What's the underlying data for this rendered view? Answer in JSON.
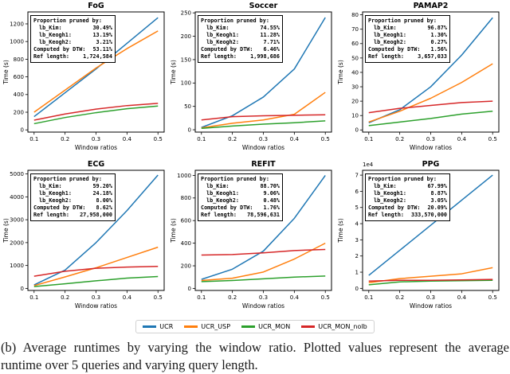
{
  "figure": {
    "stats_header": "Proportion pruned by:"
  },
  "legend": {
    "entries": [
      {
        "label": "UCR",
        "color": "#1f77b4"
      },
      {
        "label": "UCR_USP",
        "color": "#ff7f0e"
      },
      {
        "label": "UCR_MON",
        "color": "#2ca02c"
      },
      {
        "label": "UCR_MON_nolb",
        "color": "#d62728"
      }
    ]
  },
  "chart_data": [
    {
      "type": "line",
      "title": "FoG",
      "xlabel": "Window ratios",
      "ylabel": "Time (s)",
      "x": [
        0.1,
        0.2,
        0.3,
        0.4,
        0.5
      ],
      "xticks": [
        "0.1",
        "0.2",
        "0.3",
        "0.4",
        "0.5"
      ],
      "yticks": [
        0,
        200,
        400,
        600,
        800,
        1000,
        1200
      ],
      "xlim": [
        0.08,
        0.52
      ],
      "ylim": [
        -25,
        1335
      ],
      "offset_label": "",
      "stats_rows": [
        {
          "label": "lb_Kim:",
          "value": "30.49%"
        },
        {
          "label": "lb_Keogh1:",
          "value": "13.19%"
        },
        {
          "label": "lb_Keogh2:",
          "value": "3.21%"
        },
        {
          "label": "Computed by DTW:",
          "value": "53.11%"
        },
        {
          "label": "Ref length:",
          "value": "1,724,584"
        }
      ],
      "series": [
        {
          "name": "UCR",
          "values": [
            150,
            420,
            690,
            980,
            1270
          ]
        },
        {
          "name": "UCR_USP",
          "values": [
            200,
            450,
            700,
            920,
            1120
          ]
        },
        {
          "name": "UCR_MON",
          "values": [
            70,
            140,
            195,
            240,
            270
          ]
        },
        {
          "name": "UCR_MON_nolb",
          "values": [
            110,
            180,
            235,
            275,
            300
          ]
        }
      ]
    },
    {
      "type": "line",
      "title": "Soccer",
      "xlabel": "Window ratios",
      "ylabel": "Time (s)",
      "x": [
        0.1,
        0.2,
        0.3,
        0.4,
        0.5
      ],
      "xticks": [
        "0.1",
        "0.2",
        "0.3",
        "0.4",
        "0.5"
      ],
      "yticks": [
        0,
        50,
        100,
        150,
        200,
        250
      ],
      "xlim": [
        0.08,
        0.52
      ],
      "ylim": [
        -5,
        252
      ],
      "offset_label": "",
      "stats_rows": [
        {
          "label": "lb_Kim:",
          "value": "74.55%"
        },
        {
          "label": "lb_Keogh1:",
          "value": "11.28%"
        },
        {
          "label": "lb_Keogh2:",
          "value": "7.71%"
        },
        {
          "label": "Computed by DTW:",
          "value": "6.46%"
        },
        {
          "label": "Ref length:",
          "value": "1,998,686"
        }
      ],
      "series": [
        {
          "name": "UCR",
          "values": [
            5,
            30,
            70,
            130,
            240
          ]
        },
        {
          "name": "UCR_USP",
          "values": [
            4,
            14,
            21,
            33,
            80
          ]
        },
        {
          "name": "UCR_MON",
          "values": [
            3,
            8,
            12,
            15,
            19
          ]
        },
        {
          "name": "UCR_MON_nolb",
          "values": [
            21,
            28,
            30,
            31,
            32
          ]
        }
      ]
    },
    {
      "type": "line",
      "title": "PAMAP2",
      "xlabel": "Window ratios",
      "ylabel": "Time (s)",
      "x": [
        0.1,
        0.2,
        0.3,
        0.4,
        0.5
      ],
      "xticks": [
        "0.1",
        "0.2",
        "0.3",
        "0.4",
        "0.5"
      ],
      "yticks": [
        0,
        10,
        20,
        30,
        40,
        50,
        60,
        70,
        80
      ],
      "xlim": [
        0.08,
        0.52
      ],
      "ylim": [
        -1.5,
        82
      ],
      "offset_label": "",
      "stats_rows": [
        {
          "label": "lb_Kim:",
          "value": "96.87%"
        },
        {
          "label": "lb_Keogh1:",
          "value": "1.30%"
        },
        {
          "label": "lb_Keogh2:",
          "value": "0.27%"
        },
        {
          "label": "Computed by DTW:",
          "value": "1.56%"
        },
        {
          "label": "Ref length:",
          "value": "3,657,033"
        }
      ],
      "series": [
        {
          "name": "UCR",
          "values": [
            5,
            14,
            30,
            52,
            78
          ]
        },
        {
          "name": "UCR_USP",
          "values": [
            5.5,
            13,
            22,
            33,
            46
          ]
        },
        {
          "name": "UCR_MON",
          "values": [
            3,
            5.5,
            8,
            11,
            13
          ]
        },
        {
          "name": "UCR_MON_nolb",
          "values": [
            12,
            15,
            17,
            19,
            20
          ]
        }
      ]
    },
    {
      "type": "line",
      "title": "ECG",
      "xlabel": "Window ratios",
      "ylabel": "Time (s)",
      "x": [
        0.1,
        0.2,
        0.3,
        0.4,
        0.5
      ],
      "xticks": [
        "0.1",
        "0.2",
        "0.3",
        "0.4",
        "0.5"
      ],
      "yticks": [
        0,
        1000,
        2000,
        3000,
        4000,
        5000
      ],
      "xlim": [
        0.08,
        0.52
      ],
      "ylim": [
        -90,
        5160
      ],
      "offset_label": "",
      "stats_rows": [
        {
          "label": "lb_Kim:",
          "value": "59.20%"
        },
        {
          "label": "lb_Keogh1:",
          "value": "24.18%"
        },
        {
          "label": "lb_Keogh2:",
          "value": "8.00%"
        },
        {
          "label": "Computed by DTW:",
          "value": "8.62%"
        },
        {
          "label": "Ref length:",
          "value": "27,958,000"
        }
      ],
      "series": [
        {
          "name": "UCR",
          "values": [
            150,
            800,
            2000,
            3400,
            4950
          ]
        },
        {
          "name": "UCR_USP",
          "values": [
            120,
            500,
            900,
            1350,
            1800
          ]
        },
        {
          "name": "UCR_MON",
          "values": [
            80,
            200,
            330,
            450,
            520
          ]
        },
        {
          "name": "UCR_MON_nolb",
          "values": [
            530,
            750,
            880,
            930,
            960
          ]
        }
      ]
    },
    {
      "type": "line",
      "title": "REFIT",
      "xlabel": "Window ratios",
      "ylabel": "Time (s)",
      "x": [
        0.1,
        0.2,
        0.3,
        0.4,
        0.5
      ],
      "xticks": [
        "0.1",
        "0.2",
        "0.3",
        "0.4",
        "0.5"
      ],
      "yticks": [
        0,
        200,
        400,
        600,
        800,
        1000
      ],
      "xlim": [
        0.08,
        0.52
      ],
      "ylim": [
        -18,
        1045
      ],
      "offset_label": "",
      "stats_rows": [
        {
          "label": "lb_Kim:",
          "value": "88.70%"
        },
        {
          "label": "lb_Keogh1:",
          "value": "9.06%"
        },
        {
          "label": "lb_Keogh2:",
          "value": "0.48%"
        },
        {
          "label": "Computed by DTW:",
          "value": "1.76%"
        },
        {
          "label": "Ref length:",
          "value": "78,596,631"
        }
      ],
      "series": [
        {
          "name": "UCR",
          "values": [
            80,
            170,
            330,
            620,
            1000
          ]
        },
        {
          "name": "UCR_USP",
          "values": [
            70,
            90,
            145,
            260,
            400
          ]
        },
        {
          "name": "UCR_MON",
          "values": [
            60,
            70,
            85,
            100,
            110
          ]
        },
        {
          "name": "UCR_MON_nolb",
          "values": [
            295,
            300,
            315,
            335,
            345
          ]
        }
      ]
    },
    {
      "type": "line",
      "title": "PPG",
      "xlabel": "Window ratios",
      "ylabel": "Time (s)",
      "x": [
        0.1,
        0.2,
        0.3,
        0.4,
        0.5
      ],
      "xticks": [
        "0.1",
        "0.2",
        "0.3",
        "0.4",
        "0.5"
      ],
      "yticks": [
        0,
        1,
        2,
        3,
        4,
        5,
        6,
        7
      ],
      "xlim": [
        0.08,
        0.52
      ],
      "ylim": [
        -0.13,
        7.3
      ],
      "offset_label": "1e4",
      "stats_rows": [
        {
          "label": "lb_Kim:",
          "value": "67.99%"
        },
        {
          "label": "lb_Keogh1:",
          "value": "8.87%"
        },
        {
          "label": "lb_Keogh2:",
          "value": "3.05%"
        },
        {
          "label": "Computed by DTW:",
          "value": "20.09%"
        },
        {
          "label": "Ref length:",
          "value": "333,570,000"
        }
      ],
      "series": [
        {
          "name": "UCR",
          "values": [
            0.8,
            2.35,
            3.9,
            5.45,
            7.0
          ]
        },
        {
          "name": "UCR_USP",
          "values": [
            0.35,
            0.6,
            0.75,
            0.9,
            1.28
          ]
        },
        {
          "name": "UCR_MON",
          "values": [
            0.22,
            0.4,
            0.45,
            0.47,
            0.5
          ]
        },
        {
          "name": "UCR_MON_nolb",
          "values": [
            0.45,
            0.5,
            0.5,
            0.52,
            0.55
          ]
        }
      ]
    }
  ],
  "caption": {
    "lines": [
      "(b) Average runtimes by varying the window ratio.  Plotted values represent the average",
      "runtime over 5 queries and varying query length."
    ]
  }
}
